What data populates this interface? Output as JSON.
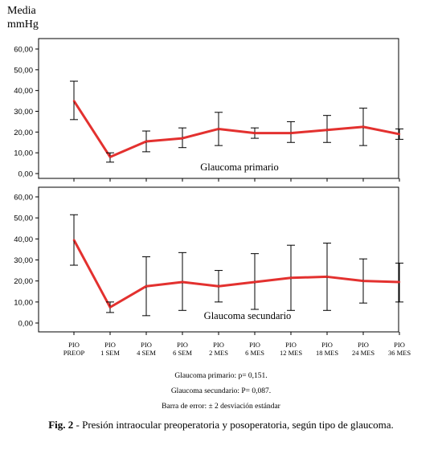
{
  "chart_data": {
    "type": "line",
    "ylabel": [
      "Media",
      "mmHg"
    ],
    "categories": [
      [
        "PIO",
        "PREOP"
      ],
      [
        "PIO",
        "1 SEM"
      ],
      [
        "PIO",
        "4 SEM"
      ],
      [
        "PIO",
        "6 SEM"
      ],
      [
        "PIO",
        "2 MES"
      ],
      [
        "PIO",
        "6 MES"
      ],
      [
        "PIO",
        "12 MES"
      ],
      [
        "PIO",
        "18 MES"
      ],
      [
        "PIO",
        "24 MES"
      ],
      [
        "PIO",
        "36 MES"
      ]
    ],
    "ylim": [
      0,
      60
    ],
    "yticks": [
      "0,00",
      "10,00",
      "20,00",
      "30,00",
      "40,00",
      "50,00",
      "60,00"
    ],
    "grid": false,
    "line_color": "#e3312f",
    "panels": [
      {
        "label": "Glaucoma primario",
        "mean": [
          35,
          8,
          15.5,
          17,
          21.5,
          19.5,
          19.5,
          21,
          22.5,
          19
        ],
        "lower": [
          26,
          5.5,
          10.5,
          12.5,
          13.5,
          17,
          15,
          15,
          13.5,
          16.5
        ],
        "upper": [
          44.5,
          10,
          20.5,
          22,
          29.5,
          22,
          25,
          28,
          31.5,
          21.5
        ]
      },
      {
        "label": "Glaucoma secundario",
        "mean": [
          39.5,
          7.5,
          17.5,
          19.5,
          17.5,
          19.5,
          21.5,
          22,
          20,
          19.5
        ],
        "lower": [
          27.5,
          5,
          3.5,
          6,
          10,
          6.5,
          6,
          6,
          9.5,
          10
        ],
        "upper": [
          51.5,
          10,
          31.5,
          33.5,
          25,
          33,
          37,
          38,
          30.5,
          28.5
        ]
      }
    ]
  },
  "notes": [
    "Glaucoma primario: p= 0,151.",
    "Glaucoma secundario: P= 0,087.",
    "Barra de error: ± 2 desviación estándar"
  ],
  "caption": {
    "bold": "Fig. 2",
    "text": " - Presión intraocular preoperatoria y posoperatoria, según tipo de glaucoma."
  }
}
